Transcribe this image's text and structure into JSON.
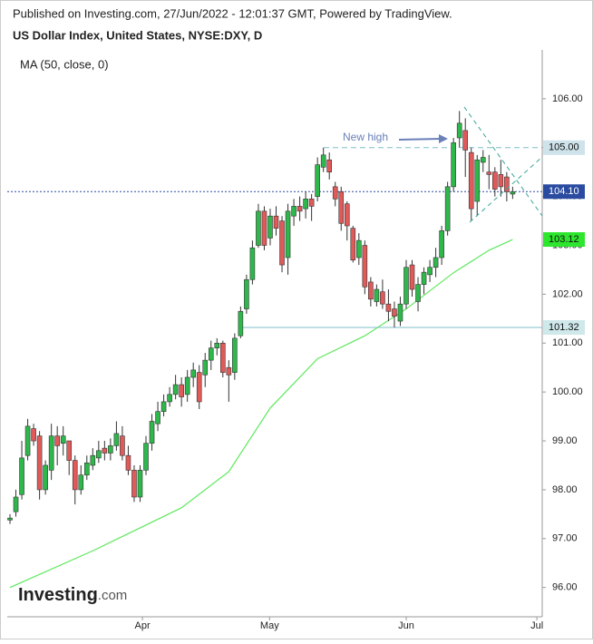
{
  "chart_data": {
    "type": "candlestick",
    "published": "Published on Investing.com, 27/Jun/2022 - 12:01:37 GMT, Powered by TradingView.",
    "title": "US Dollar Index, United States, NYSE:DXY, D",
    "logo": "Investing",
    "logo_suffix": ".com",
    "annotation": "New high",
    "up_color": "#2eb84b",
    "down_color": "#e05a5a",
    "open": [
      97.38,
      97.55,
      97.9,
      98.7,
      99.25,
      99.1,
      98.0,
      98.4,
      99.1,
      98.95,
      99.0,
      98.6,
      98.0,
      98.3,
      98.5,
      98.65,
      98.85,
      98.75,
      98.9,
      99.1,
      98.7,
      98.4,
      97.85,
      98.4,
      98.95,
      99.35,
      99.6,
      99.8,
      99.95,
      100.15,
      99.95,
      100.3,
      100.4,
      100.35,
      100.65,
      100.9,
      101.0,
      100.5,
      100.4,
      101.15,
      101.7,
      102.3,
      103.0,
      103.7,
      103.15,
      103.6,
      103.5,
      102.75,
      103.6,
      103.8,
      103.75,
      103.95,
      104.0,
      104.6,
      104.75,
      104.2,
      104.1,
      103.85,
      103.35,
      102.75,
      103.0,
      102.25,
      101.85,
      102.05,
      101.8,
      101.7,
      101.45,
      101.8,
      102.6,
      101.85,
      102.2,
      102.4,
      102.55,
      102.75,
      103.3,
      104.2,
      105.2,
      105.35,
      104.9,
      103.9,
      104.7,
      104.5,
      104.5,
      104.45,
      104.4,
      104.05
    ],
    "high": [
      97.5,
      98.0,
      99.0,
      99.45,
      99.35,
      99.2,
      98.6,
      99.35,
      99.3,
      99.3,
      99.0,
      98.7,
      98.5,
      98.7,
      98.85,
      99.0,
      99.0,
      99.05,
      99.4,
      99.3,
      98.9,
      98.5,
      98.5,
      99.1,
      99.55,
      99.8,
      99.95,
      100.1,
      100.35,
      100.3,
      100.45,
      100.6,
      100.55,
      100.8,
      101.05,
      101.1,
      101.05,
      100.65,
      101.2,
      101.75,
      102.4,
      103.1,
      103.85,
      103.8,
      103.75,
      103.8,
      103.6,
      103.85,
      103.95,
      104.0,
      104.1,
      104.05,
      104.8,
      105.0,
      104.9,
      104.3,
      104.2,
      103.9,
      103.4,
      103.25,
      103.1,
      102.35,
      102.2,
      102.3,
      102.1,
      101.85,
      101.95,
      102.7,
      102.7,
      102.35,
      102.55,
      102.7,
      102.95,
      103.4,
      104.3,
      105.2,
      105.75,
      105.6,
      105.0,
      104.85,
      104.95,
      104.85,
      104.6,
      104.75,
      104.5,
      104.2
    ],
    "low": [
      97.3,
      97.45,
      97.8,
      98.6,
      98.9,
      97.8,
      97.9,
      98.2,
      98.5,
      98.7,
      98.3,
      97.7,
      97.9,
      98.2,
      98.4,
      98.55,
      98.6,
      98.6,
      98.8,
      98.6,
      98.3,
      97.75,
      97.75,
      98.3,
      98.8,
      99.2,
      99.5,
      99.7,
      99.85,
      99.7,
      99.8,
      100.1,
      99.65,
      100.1,
      100.45,
      100.75,
      100.3,
      99.8,
      100.25,
      101.1,
      101.6,
      102.2,
      102.95,
      102.9,
      103.0,
      103.2,
      102.45,
      102.4,
      103.4,
      103.5,
      103.55,
      103.5,
      103.9,
      104.5,
      104.35,
      103.8,
      103.3,
      103.1,
      102.65,
      102.6,
      102.0,
      101.75,
      101.75,
      101.7,
      101.45,
      101.32,
      101.35,
      101.7,
      101.95,
      101.65,
      102.0,
      102.25,
      102.35,
      102.6,
      103.2,
      104.1,
      105.0,
      104.4,
      103.5,
      103.6,
      104.5,
      104.15,
      104.0,
      104.0,
      103.9,
      103.95
    ],
    "close": [
      97.42,
      97.85,
      98.65,
      99.3,
      99.0,
      98.0,
      98.5,
      99.1,
      98.9,
      99.1,
      98.6,
      98.0,
      98.3,
      98.55,
      98.7,
      98.8,
      98.75,
      98.9,
      99.15,
      98.7,
      98.4,
      97.85,
      98.4,
      98.95,
      99.4,
      99.6,
      99.8,
      99.95,
      100.15,
      99.9,
      100.3,
      100.45,
      99.8,
      100.65,
      100.9,
      101.0,
      100.4,
      100.35,
      101.1,
      101.65,
      102.3,
      102.95,
      103.7,
      103.0,
      103.6,
      103.35,
      102.6,
      103.7,
      103.8,
      103.7,
      103.95,
      103.8,
      104.65,
      104.85,
      104.5,
      103.95,
      103.45,
      103.4,
      102.7,
      103.1,
      102.15,
      101.9,
      102.1,
      101.8,
      101.65,
      101.55,
      101.8,
      102.55,
      102.1,
      102.2,
      102.45,
      102.55,
      102.75,
      103.3,
      104.2,
      105.1,
      105.5,
      104.95,
      103.75,
      104.75,
      104.8,
      104.45,
      104.15,
      104.2,
      104.1,
      104.1
    ],
    "ma": {
      "name": "MA (50, close, 0)",
      "color": "#5ee85e",
      "x": [
        0,
        14,
        29,
        37,
        44,
        52,
        60,
        67,
        75,
        81,
        85
      ],
      "values": [
        96.0,
        96.75,
        97.63,
        98.37,
        99.67,
        100.68,
        101.15,
        101.7,
        102.44,
        102.9,
        103.12
      ]
    },
    "levels": [
      {
        "value": 105.0,
        "label": "105.00",
        "color": "#7fbfca",
        "box": "#cfe3ea",
        "style": "dashed"
      },
      {
        "value": 104.1,
        "label": "104.10",
        "color": "#2a4ba0",
        "box": "#2a4ba0",
        "style": "dotted"
      },
      {
        "value": 103.12,
        "label": "103.12",
        "color": "#2ee62e",
        "box": "#2ee62e",
        "style": "none"
      },
      {
        "value": 101.32,
        "label": "101.32",
        "color": "#7fbfca",
        "box": "#cfe8ea",
        "style": "solid"
      }
    ],
    "xlim": [
      -0.46,
      90.0
    ],
    "xticks": [
      {
        "value": 22.4,
        "label": "Apr"
      },
      {
        "value": 43.9,
        "label": "May"
      },
      {
        "value": 67.0,
        "label": "Jun"
      },
      {
        "value": 89.1,
        "label": "Jul"
      }
    ],
    "ylim": [
      95.4,
      107.0
    ],
    "yticks": [
      {
        "value": 96,
        "label": "96.00"
      },
      {
        "value": 97,
        "label": "97.00"
      },
      {
        "value": 98,
        "label": "98.00"
      },
      {
        "value": 99,
        "label": "99.00"
      },
      {
        "value": 100,
        "label": "100.00"
      },
      {
        "value": 101,
        "label": "101.00"
      },
      {
        "value": 102,
        "label": "102.00"
      },
      {
        "value": 103,
        "label": "103.00"
      },
      {
        "value": 104,
        "label": "104.00"
      },
      {
        "value": 105,
        "label": "105.00"
      },
      {
        "value": 106,
        "label": "106.00"
      }
    ]
  }
}
